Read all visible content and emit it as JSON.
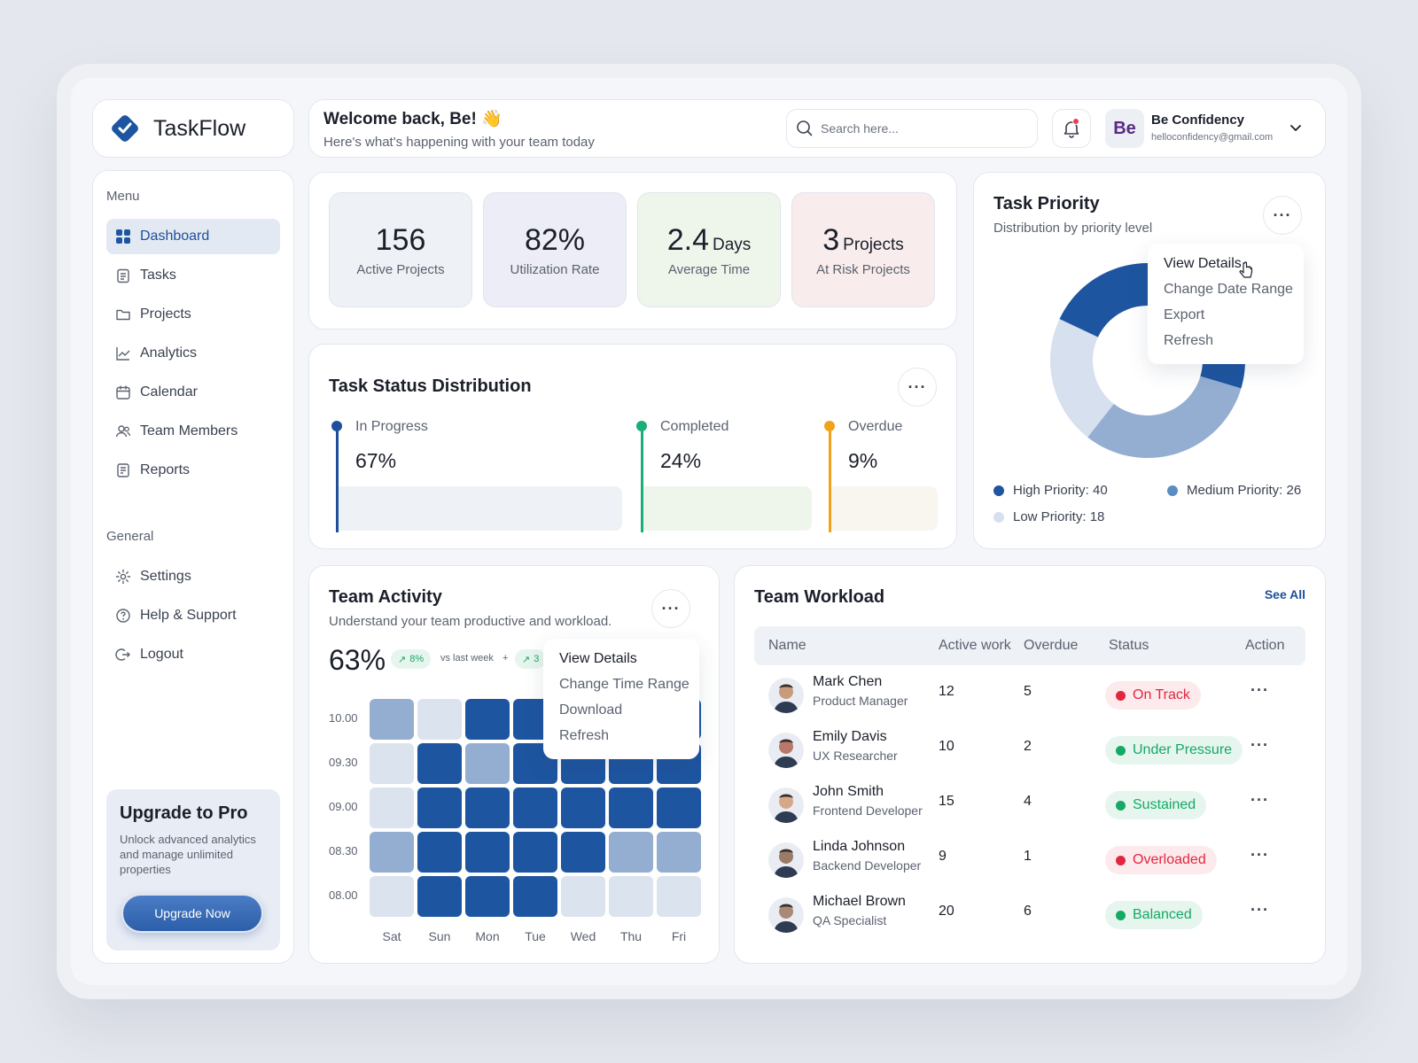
{
  "app": {
    "name": "TaskFlow"
  },
  "header": {
    "greeting": "Welcome back, Be! 👋",
    "subtitle": "Here's what's happening with your team today",
    "search_placeholder": "Search here...",
    "avatar_initials": "Be",
    "user_name": "Be Confidency",
    "user_email": "helloconfidency@gmail.com"
  },
  "sidebar": {
    "menu_label": "Menu",
    "menu_items": [
      {
        "label": "Dashboard",
        "icon": "grid-icon",
        "active": true
      },
      {
        "label": "Tasks",
        "icon": "clipboard-icon"
      },
      {
        "label": "Projects",
        "icon": "folder-icon"
      },
      {
        "label": "Analytics",
        "icon": "chart-line-icon"
      },
      {
        "label": "Calendar",
        "icon": "calendar-icon"
      },
      {
        "label": "Team Members",
        "icon": "users-icon"
      },
      {
        "label": "Reports",
        "icon": "report-icon"
      }
    ],
    "general_label": "General",
    "general_items": [
      {
        "label": "Settings",
        "icon": "gear-icon"
      },
      {
        "label": "Help & Support",
        "icon": "help-icon"
      },
      {
        "label": "Logout",
        "icon": "logout-icon"
      }
    ],
    "upgrade": {
      "title": "Upgrade to Pro",
      "description": "Unlock advanced analytics and manage unlimited properties",
      "button": "Upgrade Now"
    }
  },
  "stats": [
    {
      "value": "156",
      "unit": "",
      "label": "Active Projects",
      "bg": "#eef1f5"
    },
    {
      "value": "82%",
      "unit": "",
      "label": "Utilization Rate",
      "bg": "#ecedf6"
    },
    {
      "value": "2.4",
      "unit": "Days",
      "label": "Average Time",
      "bg": "#eef6ec"
    },
    {
      "value": "3",
      "unit": "Projects",
      "label": "At Risk Projects",
      "bg": "#f8ecec"
    }
  ],
  "task_status": {
    "title": "Task Status Distribution",
    "segments": [
      {
        "label": "In Progress",
        "percent": "67%",
        "value": 67,
        "color": "#1e4f9a",
        "fill": "#eef1f5"
      },
      {
        "label": "Completed",
        "percent": "24%",
        "value": 24,
        "color": "#1aae78",
        "fill": "#eef6ec"
      },
      {
        "label": "Overdue",
        "percent": "9%",
        "value": 9,
        "color": "#f0a31a",
        "fill": "#f8f6ef"
      }
    ]
  },
  "priority": {
    "title": "Task Priority",
    "subtitle": "Distribution by priority level",
    "menu": [
      "View Details",
      "Change Date Range",
      "Export",
      "Refresh"
    ],
    "legend": [
      {
        "label": "High Priority: 40",
        "value": 40,
        "color": "#1e55a0"
      },
      {
        "label": "Medium Priority: 26",
        "value": 26,
        "color": "#5b8cc2"
      },
      {
        "label": "Low Priority: 18",
        "value": 18,
        "color": "#d6e0ee"
      }
    ]
  },
  "activity": {
    "title": "Team Activity",
    "subtitle": "Understand your team productive and workload.",
    "percent": "63%",
    "chip1": "8%",
    "vs_label": "vs last week",
    "plus": "+",
    "chip2": "3",
    "menu": [
      "View Details",
      "Change Time Range",
      "Download",
      "Refresh"
    ],
    "y_labels": [
      "10.00",
      "09.30",
      "09.00",
      "08.30",
      "08.00"
    ],
    "x_labels": [
      "Sat",
      "Sun",
      "Mon",
      "Tue",
      "Wed",
      "Thu",
      "Fri"
    ],
    "grid": [
      [
        2,
        1,
        3,
        3,
        3,
        3,
        3
      ],
      [
        1,
        3,
        2,
        3,
        3,
        3,
        3
      ],
      [
        1,
        3,
        3,
        3,
        3,
        3,
        3
      ],
      [
        2,
        3,
        3,
        3,
        3,
        2,
        2
      ],
      [
        1,
        3,
        3,
        3,
        1,
        1,
        1
      ]
    ],
    "colors": {
      "1": "#dbe3ef",
      "2": "#94aed1",
      "3": "#1e55a0"
    }
  },
  "workload": {
    "title": "Team Workload",
    "see_all": "See All",
    "columns": [
      "Name",
      "Active work",
      "Overdue",
      "Status",
      "Action"
    ],
    "rows": [
      {
        "name": "Mark Chen",
        "role": "Product Manager",
        "active": "12",
        "overdue": "5",
        "status": "On Track",
        "status_color": "#e0273f",
        "status_bg": "#fdeaec",
        "avatar": "#c89b7b"
      },
      {
        "name": "Emily Davis",
        "role": "UX Researcher",
        "active": "10",
        "overdue": "2",
        "status": "Under Pressure",
        "status_color": "#16a865",
        "status_bg": "#e6f6ee",
        "avatar": "#b8796a"
      },
      {
        "name": "John Smith",
        "role": "Frontend Developer",
        "active": "15",
        "overdue": "4",
        "status": "Sustained",
        "status_color": "#16a865",
        "status_bg": "#e6f6ee",
        "avatar": "#d6a888"
      },
      {
        "name": "Linda Johnson",
        "role": "Backend Developer",
        "active": "9",
        "overdue": "1",
        "status": "Overloaded",
        "status_color": "#e0273f",
        "status_bg": "#fdeaec",
        "avatar": "#9a7b68"
      },
      {
        "name": "Michael Brown",
        "role": "QA Specialist",
        "active": "20",
        "overdue": "6",
        "status": "Balanced",
        "status_color": "#16a865",
        "status_bg": "#e6f6ee",
        "avatar": "#a98a76"
      }
    ]
  }
}
